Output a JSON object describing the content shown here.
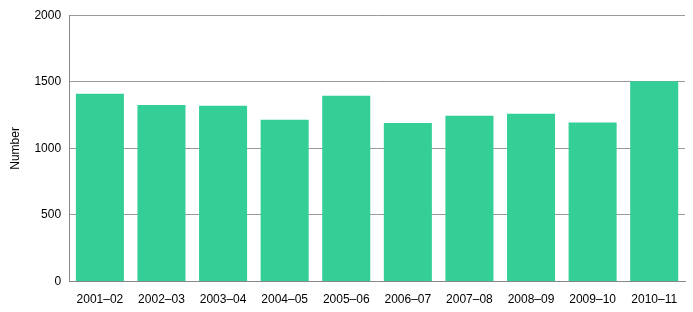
{
  "chart_data": {
    "type": "bar",
    "ylabel": "Number",
    "categories": [
      "2001–02",
      "2002–03",
      "2003–04",
      "2004–05",
      "2005–06",
      "2006–07",
      "2007–08",
      "2008–09",
      "2009–10",
      "2010–11"
    ],
    "values": [
      1410,
      1325,
      1320,
      1215,
      1395,
      1190,
      1245,
      1260,
      1195,
      1505
    ],
    "color": "#33cf96",
    "ylim": [
      0,
      2000
    ],
    "yticks": [
      0,
      500,
      1000,
      1500,
      2000
    ],
    "grid": true
  }
}
